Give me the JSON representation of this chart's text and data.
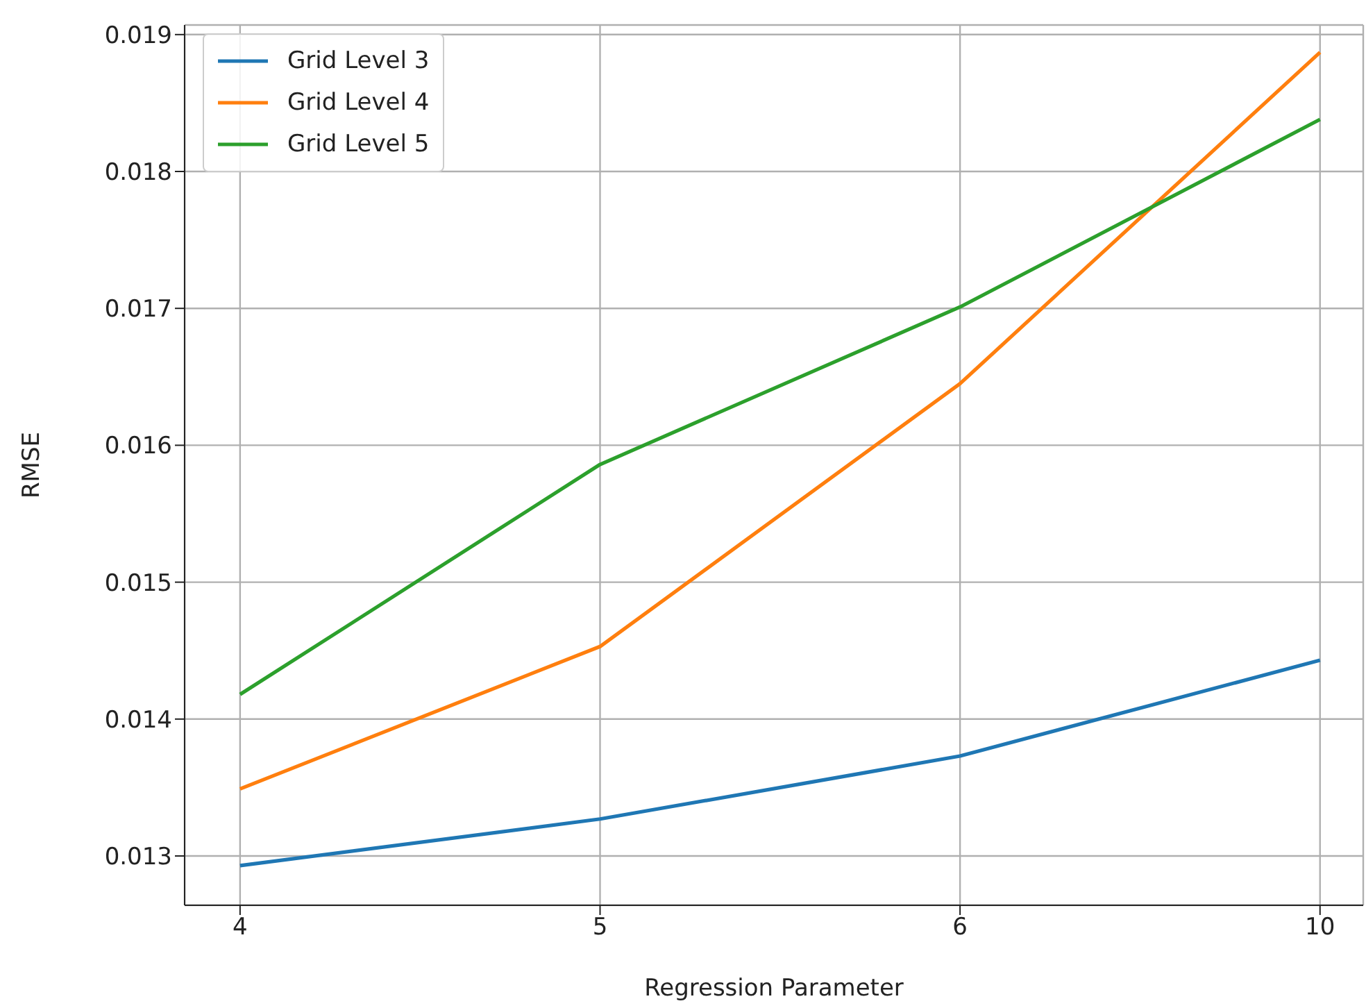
{
  "chart_data": {
    "type": "line",
    "xlabel": "Regression Parameter",
    "ylabel": "RMSE",
    "categories": [
      "4",
      "5",
      "6",
      "10"
    ],
    "series": [
      {
        "name": "Grid Level 3",
        "color": "#1f77b4",
        "values": [
          0.01293,
          0.01327,
          0.01373,
          0.01443
        ]
      },
      {
        "name": "Grid Level 4",
        "color": "#ff7f0e",
        "values": [
          0.01349,
          0.01453,
          0.01645,
          0.01887
        ]
      },
      {
        "name": "Grid Level 5",
        "color": "#2ca02c",
        "values": [
          0.01418,
          0.01586,
          0.01701,
          0.01838
        ]
      }
    ],
    "ylim": [
      0.01264,
      0.01907
    ],
    "yticks": [
      0.013,
      0.014,
      0.015,
      0.016,
      0.017,
      0.018,
      0.019
    ],
    "grid": true,
    "legend": "top left",
    "marker": "none",
    "line_style": "solid"
  }
}
